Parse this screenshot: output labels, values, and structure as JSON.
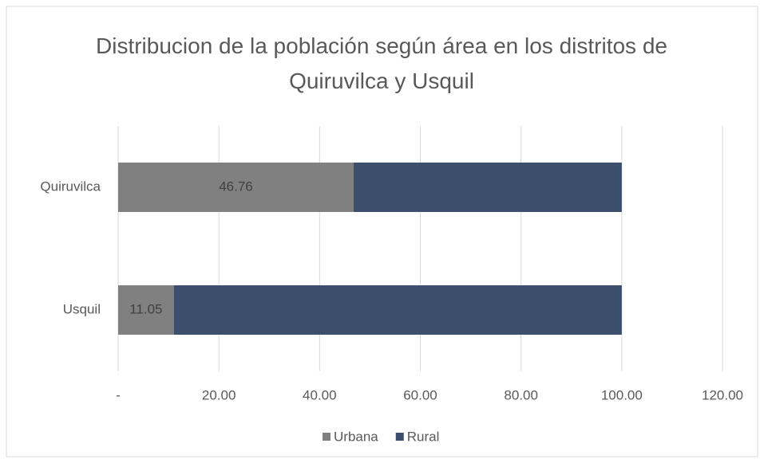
{
  "chart_data": {
    "type": "stacked_barh",
    "title": "Distribucion de la población según área en los distritos de Quiruvilca y Usquil",
    "categories": [
      "Quiruvilca",
      "Usquil"
    ],
    "series": [
      {
        "name": "Urbana",
        "color": "#808080",
        "values": [
          46.76,
          11.05
        ]
      },
      {
        "name": "Rural",
        "color": "#3b4e6c",
        "values": [
          53.24,
          88.95
        ]
      }
    ],
    "xlim": [
      0,
      120
    ],
    "xticks": [
      {
        "value": 0,
        "label": "-"
      },
      {
        "value": 20,
        "label": "20.00"
      },
      {
        "value": 40,
        "label": "40.00"
      },
      {
        "value": 60,
        "label": "60.00"
      },
      {
        "value": 80,
        "label": "80.00"
      },
      {
        "value": 100,
        "label": "100.00"
      },
      {
        "value": 120,
        "label": "120.00"
      }
    ],
    "grid": true,
    "legend": "bottom"
  }
}
